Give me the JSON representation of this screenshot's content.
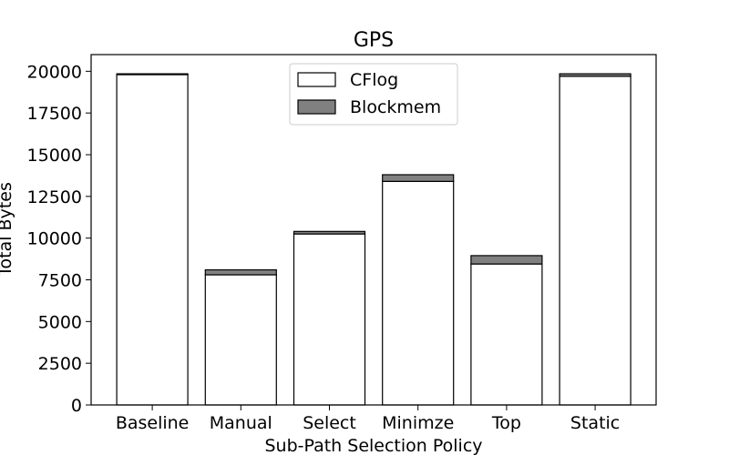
{
  "chart_data": {
    "type": "bar",
    "stacked": true,
    "title": "GPS",
    "xlabel": "Sub-Path Selection Policy",
    "ylabel": "Total Bytes",
    "categories": [
      "Baseline",
      "Manual",
      "Select",
      "Minimze",
      "Top",
      "Static"
    ],
    "series": [
      {
        "name": "CFlog",
        "values": [
          19800,
          7800,
          10250,
          13400,
          8450,
          19700
        ],
        "color": "#ffffff"
      },
      {
        "name": "Blockmem",
        "values": [
          50,
          300,
          150,
          400,
          500,
          150
        ],
        "color": "#808080"
      }
    ],
    "ylim": [
      0,
      21000
    ],
    "yticks": [
      0,
      2500,
      5000,
      7500,
      10000,
      12500,
      15000,
      17500,
      20000
    ],
    "legend": "top-center",
    "grid": false
  }
}
